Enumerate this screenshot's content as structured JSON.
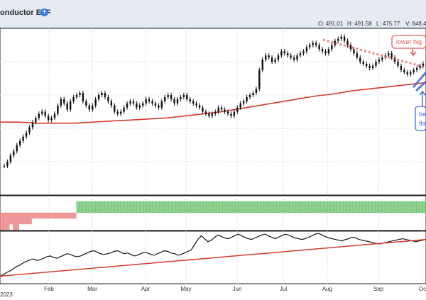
{
  "header": {
    "title": "onductor ETF",
    "add_icon": "plus-circle-icon",
    "ohlc": [
      {
        "label": "O:",
        "value": "491.01"
      },
      {
        "label": "H:",
        "value": "491.58"
      },
      {
        "label": "L:",
        "value": "475.77"
      },
      {
        "label": "V:",
        "value": "848.4"
      }
    ]
  },
  "annotations": {
    "lower_highs": "lower hig",
    "flag_line1": "be",
    "flag_line2": "fla"
  },
  "colors": {
    "ma": "#d43a2f",
    "pos_hist": "#8fd18f",
    "neg_hist": "#ef9a9a",
    "annotation_red": "#e05a5a",
    "annotation_blue": "#4a6fd6",
    "candle": "#111111"
  },
  "chart_data": [
    {
      "type": "candlestick",
      "title": "onductor ETF",
      "x_ticks": [
        "2023",
        "Feb",
        "Mar",
        "Apr",
        "May",
        "Jun",
        "Jul",
        "Aug",
        "Sep",
        "Oc"
      ],
      "y_range": [
        340,
        500
      ],
      "close": [
        368,
        372,
        378,
        382,
        388,
        392,
        396,
        400,
        405,
        410,
        414,
        418,
        420,
        416,
        412,
        414,
        418,
        426,
        432,
        428,
        422,
        430,
        434,
        436,
        438,
        430,
        426,
        422,
        426,
        432,
        436,
        438,
        434,
        430,
        426,
        420,
        418,
        420,
        424,
        428,
        430,
        428,
        424,
        426,
        428,
        432,
        430,
        428,
        426,
        424,
        430,
        434,
        436,
        432,
        428,
        432,
        434,
        436,
        432,
        430,
        428,
        426,
        424,
        420,
        418,
        416,
        418,
        420,
        424,
        422,
        420,
        418,
        416,
        420,
        424,
        428,
        430,
        434,
        436,
        438,
        442,
        460,
        470,
        474,
        472,
        468,
        470,
        474,
        478,
        476,
        474,
        472,
        470,
        474,
        476,
        478,
        482,
        484,
        486,
        484,
        480,
        478,
        476,
        480,
        484,
        488,
        490,
        492,
        488,
        484,
        480,
        476,
        472,
        468,
        466,
        464,
        462,
        464,
        468,
        470,
        472,
        474,
        476,
        472,
        468,
        464,
        460,
        458,
        456,
        458,
        460,
        462,
        464,
        466
      ],
      "moving_average": [
        410,
        410,
        409,
        409,
        409,
        410,
        411,
        412,
        413,
        414,
        416,
        418,
        420,
        423,
        426,
        429,
        432,
        435,
        437,
        440,
        442,
        444,
        446,
        448
      ],
      "annotations": [
        "lower hig",
        "be",
        "fla"
      ]
    },
    {
      "type": "bar",
      "name": "histogram",
      "values": [
        -3,
        -3,
        -3,
        -2,
        -3,
        -3,
        -2,
        -2,
        -2,
        -2,
        -1,
        -1,
        -1,
        -1,
        -1,
        -1,
        -1,
        -1,
        -1,
        -1,
        -1,
        -1,
        -1,
        -1,
        2,
        2,
        2,
        2,
        2,
        2,
        2,
        2,
        2,
        2,
        2,
        2,
        2,
        2,
        2,
        2,
        2,
        2,
        2,
        2,
        2,
        2,
        2,
        2,
        2,
        2,
        2,
        2,
        2,
        2,
        2,
        2,
        2,
        2,
        2,
        2,
        2,
        2,
        2,
        2,
        2,
        2,
        2,
        2,
        2,
        2,
        2,
        2,
        2,
        2,
        2,
        2,
        2,
        2,
        2,
        2,
        2,
        2,
        2,
        2,
        2,
        2,
        2,
        2,
        2,
        2,
        2,
        2,
        2,
        2,
        2,
        2,
        2,
        2,
        2,
        2,
        2,
        2,
        2,
        2,
        2,
        2,
        2,
        2,
        2,
        2,
        2,
        2,
        2,
        2,
        2,
        2,
        2,
        2,
        2,
        2,
        2,
        2,
        2,
        2,
        2,
        2,
        2,
        2,
        2,
        2,
        2,
        2,
        2,
        2
      ]
    },
    {
      "type": "line",
      "name": "relative strength",
      "series": [
        {
          "name": "",
          "values": [
            300,
            302,
            305,
            307,
            310,
            313,
            315,
            318,
            320,
            322,
            323,
            321,
            322,
            324,
            326,
            327,
            325,
            324,
            326,
            328,
            330,
            329,
            327,
            326,
            327,
            329,
            331,
            333,
            334,
            332,
            330,
            329,
            330,
            331,
            333,
            334,
            332,
            330,
            331,
            329,
            327,
            328,
            330,
            332,
            331,
            329,
            328,
            330,
            332,
            334,
            333,
            331,
            330,
            328,
            329,
            331,
            333,
            335,
            342,
            349,
            354,
            350,
            346,
            348,
            352,
            355,
            353,
            351,
            350,
            352,
            354,
            356,
            354,
            352,
            350,
            349,
            351,
            353,
            355,
            356,
            354,
            352,
            350,
            352,
            354,
            356,
            355,
            353,
            351,
            350,
            349,
            350,
            352,
            354,
            356,
            357,
            355,
            353,
            351,
            350,
            349,
            348,
            347,
            349,
            350,
            352,
            351,
            349,
            348,
            347,
            346,
            345,
            344,
            343,
            344,
            345,
            346,
            347,
            348,
            349,
            350,
            349,
            348,
            347,
            346,
            347,
            348,
            349
          ]
        },
        {
          "name": "",
          "values": [
            300,
            301,
            302,
            303,
            304,
            305,
            306,
            307,
            308,
            309,
            310,
            311,
            312,
            313,
            314,
            315,
            316,
            317,
            318,
            319,
            320,
            321,
            322,
            323,
            324,
            325,
            326,
            327,
            328,
            329,
            330,
            331,
            332,
            333,
            334,
            335,
            336,
            337,
            338,
            339,
            340,
            341,
            342,
            343,
            344,
            345,
            346,
            347,
            348,
            349
          ]
        }
      ]
    }
  ]
}
